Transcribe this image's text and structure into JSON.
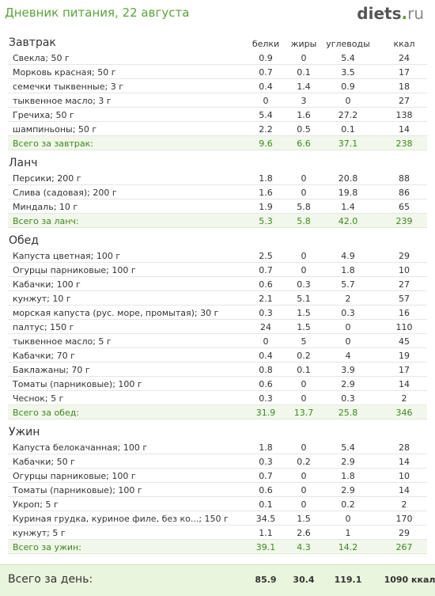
{
  "header": {
    "title": "Дневник питания, 22 августа",
    "logo_main": "diets",
    "logo_dot": ".",
    "logo_tld": "ru"
  },
  "columns": [
    "белки",
    "жиры",
    "углеводы",
    "ккал"
  ],
  "sections": [
    {
      "title": "Завтрак",
      "rows": [
        {
          "name": "Свекла; 50 г",
          "p": "0.9",
          "f": "0",
          "c": "5.4",
          "k": "24"
        },
        {
          "name": "Морковь красная; 50 г",
          "p": "0.7",
          "f": "0.1",
          "c": "3.5",
          "k": "17"
        },
        {
          "name": "семечки тыквенные; 3 г",
          "p": "0.4",
          "f": "1.4",
          "c": "0.9",
          "k": "18"
        },
        {
          "name": "тыквенное масло; 3 г",
          "p": "0",
          "f": "3",
          "c": "0",
          "k": "27"
        },
        {
          "name": "Гречиха; 50 г",
          "p": "5.4",
          "f": "1.6",
          "c": "27.2",
          "k": "138"
        },
        {
          "name": "шампиньоны; 50 г",
          "p": "2.2",
          "f": "0.5",
          "c": "0.1",
          "k": "14"
        }
      ],
      "total": {
        "name": "Всего за завтрак:",
        "p": "9.6",
        "f": "6.6",
        "c": "37.1",
        "k": "238"
      }
    },
    {
      "title": "Ланч",
      "rows": [
        {
          "name": "Персики; 200 г",
          "p": "1.8",
          "f": "0",
          "c": "20.8",
          "k": "88"
        },
        {
          "name": "Слива (садовая); 200 г",
          "p": "1.6",
          "f": "0",
          "c": "19.8",
          "k": "86"
        },
        {
          "name": "Миндаль; 10 г",
          "p": "1.9",
          "f": "5.8",
          "c": "1.4",
          "k": "65"
        }
      ],
      "total": {
        "name": "Всего за ланч:",
        "p": "5.3",
        "f": "5.8",
        "c": "42.0",
        "k": "239"
      }
    },
    {
      "title": "Обед",
      "rows": [
        {
          "name": "Капуста цветная; 100 г",
          "p": "2.5",
          "f": "0",
          "c": "4.9",
          "k": "29"
        },
        {
          "name": "Огурцы парниковые; 100 г",
          "p": "0.7",
          "f": "0",
          "c": "1.8",
          "k": "10"
        },
        {
          "name": "Кабачки; 100 г",
          "p": "0.6",
          "f": "0.3",
          "c": "5.7",
          "k": "27"
        },
        {
          "name": "кунжут; 10 г",
          "p": "2.1",
          "f": "5.1",
          "c": "2",
          "k": "57"
        },
        {
          "name": "морская капуста (рус. море, промытая); 30 г",
          "p": "0.3",
          "f": "1.5",
          "c": "0.3",
          "k": "16"
        },
        {
          "name": "палтус; 150 г",
          "p": "24",
          "f": "1.5",
          "c": "0",
          "k": "110"
        },
        {
          "name": "тыквенное масло; 5 г",
          "p": "0",
          "f": "5",
          "c": "0",
          "k": "45"
        },
        {
          "name": "Кабачки; 70 г",
          "p": "0.4",
          "f": "0.2",
          "c": "4",
          "k": "19"
        },
        {
          "name": "Баклажаны; 70 г",
          "p": "0.8",
          "f": "0.1",
          "c": "3.9",
          "k": "17"
        },
        {
          "name": "Томаты (парниковые); 100 г",
          "p": "0.6",
          "f": "0",
          "c": "2.9",
          "k": "14"
        },
        {
          "name": "Чеснок; 5 г",
          "p": "0.3",
          "f": "0",
          "c": "0.3",
          "k": "2"
        }
      ],
      "total": {
        "name": "Всего за обед:",
        "p": "31.9",
        "f": "13.7",
        "c": "25.8",
        "k": "346"
      }
    },
    {
      "title": "Ужин",
      "rows": [
        {
          "name": "Капуста белокачанная; 100 г",
          "p": "1.8",
          "f": "0",
          "c": "5.4",
          "k": "28"
        },
        {
          "name": "Кабачки; 50 г",
          "p": "0.3",
          "f": "0.2",
          "c": "2.9",
          "k": "14"
        },
        {
          "name": "Огурцы парниковые; 100 г",
          "p": "0.7",
          "f": "0",
          "c": "1.8",
          "k": "10"
        },
        {
          "name": "Томаты (парниковые); 100 г",
          "p": "0.6",
          "f": "0",
          "c": "2.9",
          "k": "14"
        },
        {
          "name": "Укроп; 5 г",
          "p": "0.1",
          "f": "0",
          "c": "0.2",
          "k": "2"
        },
        {
          "name": "Куриная грудка, куриное филе, без ко...; 150 г",
          "p": "34.5",
          "f": "1.5",
          "c": "0",
          "k": "170"
        },
        {
          "name": "кунжут; 5 г",
          "p": "1.1",
          "f": "2.6",
          "c": "1",
          "k": "29"
        }
      ],
      "total": {
        "name": "Всего за ужин:",
        "p": "39.1",
        "f": "4.3",
        "c": "14.2",
        "k": "267"
      }
    }
  ],
  "day_total": {
    "label": "Всего за день:",
    "p": "85.9",
    "f": "30.4",
    "c": "119.1",
    "k": "1090 ккал"
  }
}
